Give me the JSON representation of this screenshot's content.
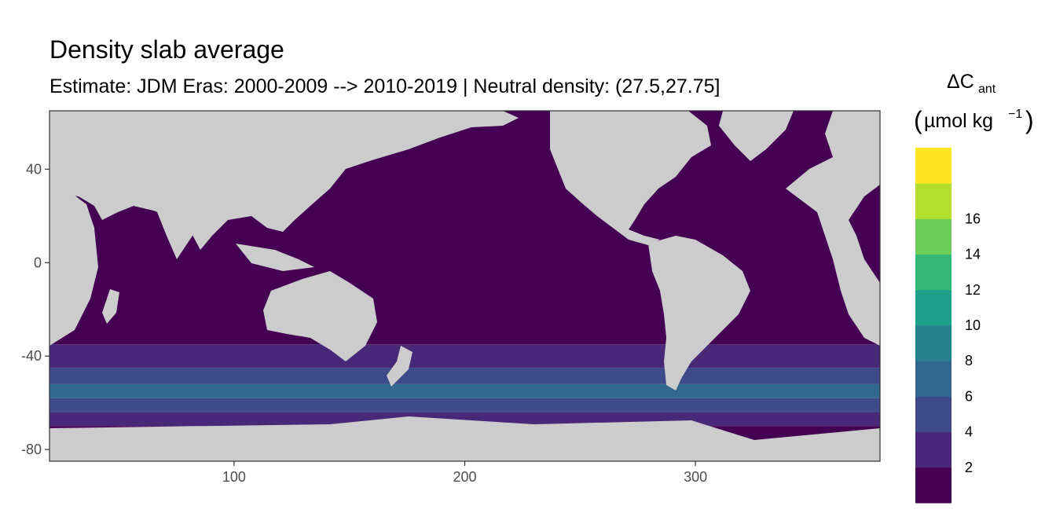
{
  "chart_data": {
    "type": "heatmap",
    "title": "Density slab average",
    "subtitle": "Estimate: JDM Eras: 2000-2009 --> 2010-2019 | Neutral density: (27.5,27.75]",
    "xlabel": "",
    "ylabel": "",
    "xlim": [
      20,
      380
    ],
    "ylim": [
      -85,
      65
    ],
    "x_ticks": [
      100,
      200,
      300
    ],
    "y_ticks": [
      40,
      0,
      -40,
      -80
    ],
    "y_tick_labels": [
      "40",
      "0",
      "-40",
      "-80"
    ],
    "x_tick_labels": [
      "100",
      "200",
      "300"
    ],
    "grid": false,
    "legend": {
      "title_main": "ΔC",
      "title_sub": "ant",
      "title_unit_open": "(",
      "title_unit": "µmol kg",
      "title_unit_exp": "−1",
      "title_unit_close": ")",
      "placement": "right",
      "breaks": [
        2,
        4,
        6,
        8,
        10,
        12,
        14,
        16
      ],
      "break_labels": [
        "2",
        "4",
        "6",
        "8",
        "10",
        "12",
        "14",
        "16"
      ],
      "colors": [
        "#440154",
        "#482878",
        "#3E4A89",
        "#31688E",
        "#26828E",
        "#1F9E89",
        "#35B779",
        "#6DCD59",
        "#B4DE2C",
        "#FDE725"
      ]
    },
    "land_color": "#CCCCCC",
    "missing_color": "#FFFFFF",
    "zonal_bands": [
      {
        "lat_from": 65,
        "lat_to": -35,
        "bin": 0
      },
      {
        "lat_from": -35,
        "lat_to": -45,
        "bin": 1
      },
      {
        "lat_from": -45,
        "lat_to": -52,
        "bin": 2
      },
      {
        "lat_from": -52,
        "lat_to": -58,
        "bin": 3
      },
      {
        "lat_from": -58,
        "lat_to": -64,
        "bin": 2
      },
      {
        "lat_from": -64,
        "lat_to": -70,
        "bin": 1
      },
      {
        "lat_from": -70,
        "lat_to": -85,
        "bin": 0
      }
    ]
  }
}
